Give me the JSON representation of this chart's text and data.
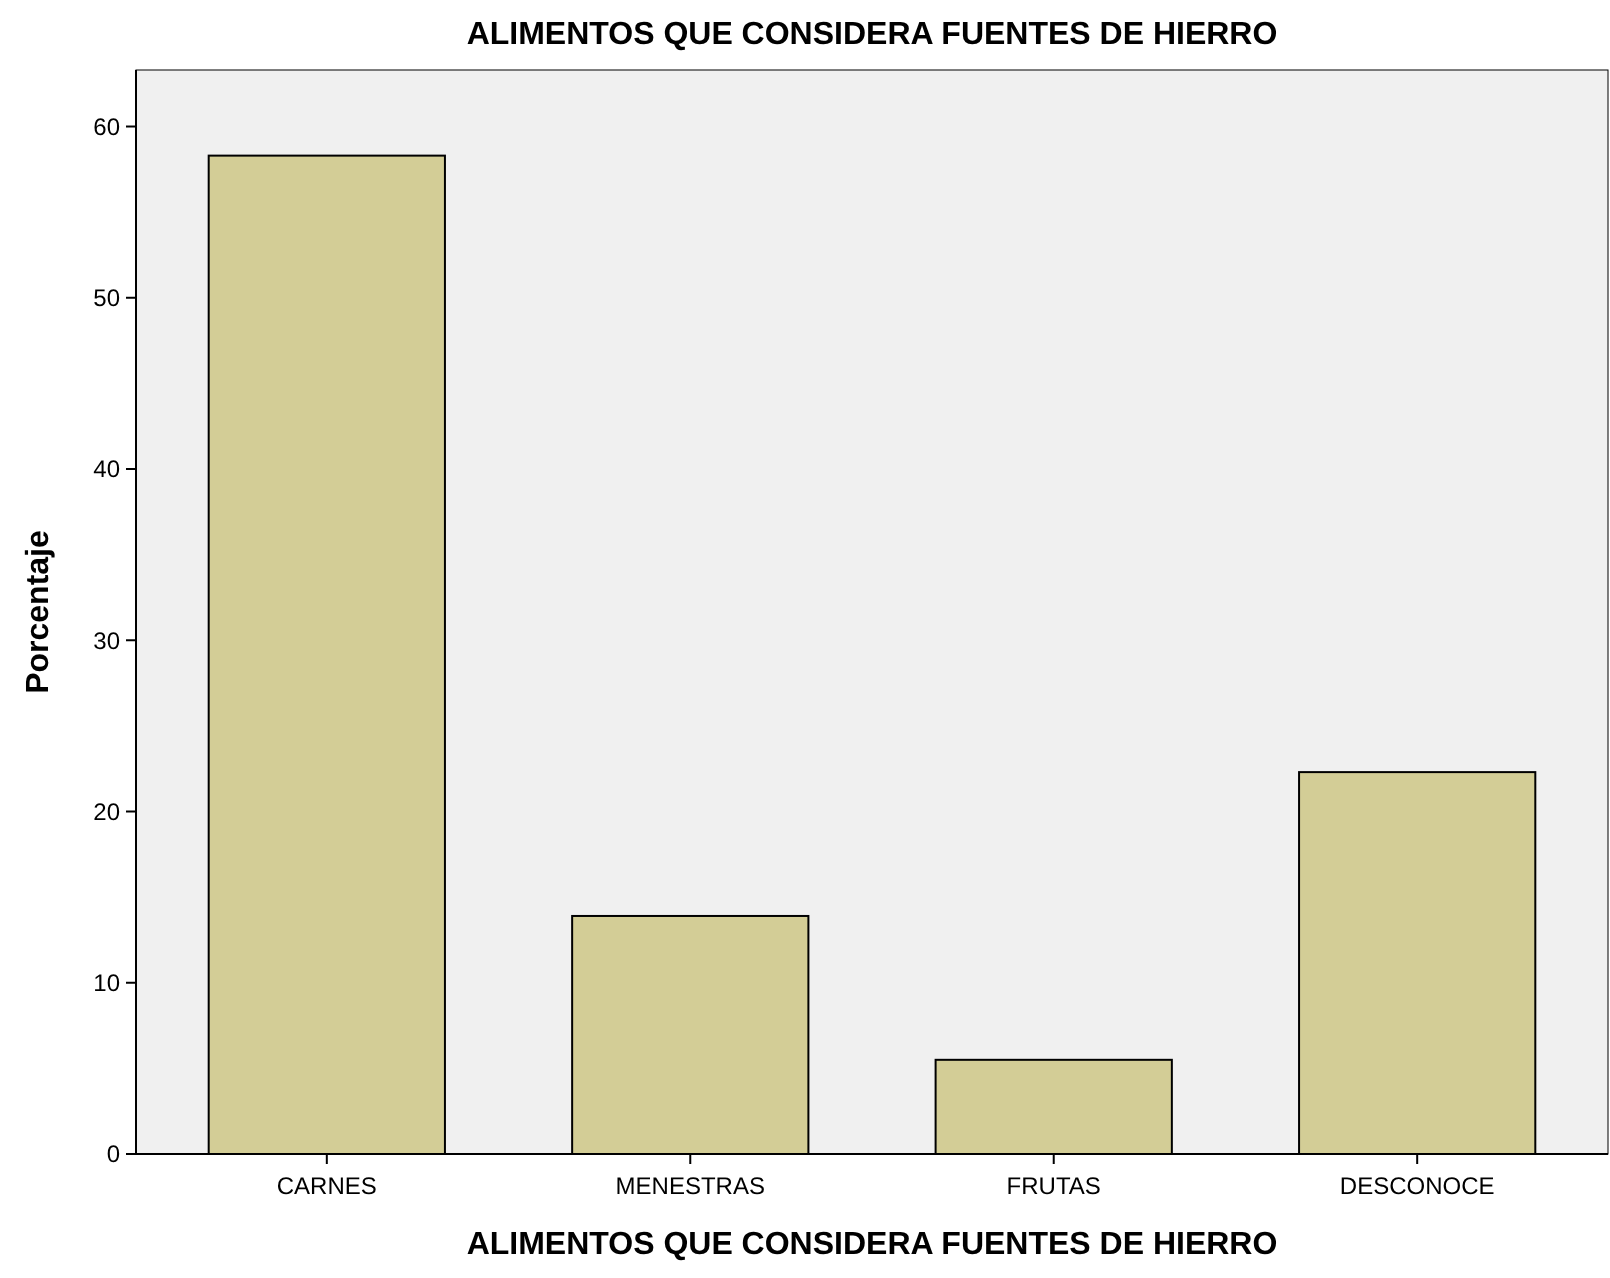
{
  "chart_data": {
    "type": "bar",
    "title": "ALIMENTOS QUE CONSIDERA FUENTES DE HIERRO",
    "xlabel": "ALIMENTOS QUE CONSIDERA FUENTES DE HIERRO",
    "ylabel": "Porcentaje",
    "categories": [
      "CARNES",
      "MENESTRAS",
      "FRUTAS",
      "DESCONOCE"
    ],
    "values": [
      58.3,
      13.9,
      5.5,
      22.3
    ],
    "color": "#d3cd96",
    "ylim": [
      0,
      63.3
    ],
    "yticks": [
      0,
      10,
      20,
      30,
      40,
      50,
      60
    ],
    "grid": false
  }
}
